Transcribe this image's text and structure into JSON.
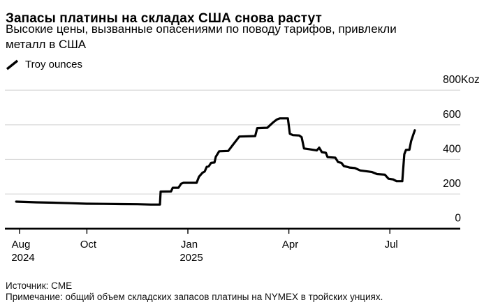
{
  "header": {
    "title": "Запасы платины на складах США снова растут",
    "subtitle_lines": [
      "Высокие цены, вызванные опасениями по поводу тарифов, привлекли",
      "металл в США"
    ]
  },
  "legend": {
    "label": "Troy ounces",
    "marker": "diagonal-line"
  },
  "footer": {
    "source": "Источник: CME",
    "note": "Примечание: общий объем складских запасов платины на NYMEX в тройских унциях."
  },
  "colors": {
    "line": "#000000",
    "grid": "#d8d8d8",
    "axis": "#000000",
    "text": "#000000",
    "background": "#ffffff"
  },
  "chart_data": {
    "type": "line",
    "title": "Запасы платины на складах США снова растут",
    "ylabel": "Troy ounces",
    "unit": "Koz (thousand troy ounces)",
    "ylim": [
      0,
      800
    ],
    "grid": "horizontal",
    "legend_position": "top-left",
    "y_ticks": [
      {
        "value": 800,
        "label": "800",
        "suffix": "Koz"
      },
      {
        "value": 600,
        "label": "600",
        "suffix": ""
      },
      {
        "value": 400,
        "label": "400",
        "suffix": ""
      },
      {
        "value": 200,
        "label": "200",
        "suffix": ""
      },
      {
        "value": 0,
        "label": "0",
        "suffix": ""
      }
    ],
    "x_unit": "months since Aug 2024",
    "x_ticks": [
      {
        "m": 0,
        "label": "Aug",
        "sublabel": "2024"
      },
      {
        "m": 2,
        "label": "Oct",
        "sublabel": ""
      },
      {
        "m": 5,
        "label": "Jan",
        "sublabel": "2025"
      },
      {
        "m": 8,
        "label": "Apr",
        "sublabel": ""
      },
      {
        "m": 11,
        "label": "Jul",
        "sublabel": ""
      }
    ],
    "series": [
      {
        "name": "Troy ounces",
        "points": [
          [
            -0.1,
            156
          ],
          [
            0.5,
            152
          ],
          [
            1,
            150
          ],
          [
            1.5,
            147
          ],
          [
            2,
            144
          ],
          [
            2.5,
            143
          ],
          [
            3,
            142
          ],
          [
            3.5,
            141
          ],
          [
            3.9,
            139
          ],
          [
            4.17,
            139
          ],
          [
            4.19,
            214
          ],
          [
            4.5,
            215
          ],
          [
            4.55,
            236
          ],
          [
            4.72,
            236
          ],
          [
            4.8,
            260
          ],
          [
            4.87,
            265
          ],
          [
            5.26,
            265
          ],
          [
            5.33,
            300
          ],
          [
            5.43,
            322
          ],
          [
            5.5,
            330
          ],
          [
            5.56,
            357
          ],
          [
            5.62,
            360
          ],
          [
            5.69,
            380
          ],
          [
            5.79,
            382
          ],
          [
            5.83,
            415
          ],
          [
            5.93,
            447
          ],
          [
            6.2,
            449
          ],
          [
            6.36,
            490
          ],
          [
            6.53,
            532
          ],
          [
            7,
            535
          ],
          [
            7.06,
            581
          ],
          [
            7.36,
            583
          ],
          [
            7.52,
            612
          ],
          [
            7.64,
            630
          ],
          [
            7.73,
            637
          ],
          [
            7.97,
            637
          ],
          [
            8.03,
            548
          ],
          [
            8.12,
            540
          ],
          [
            8.31,
            538
          ],
          [
            8.38,
            528
          ],
          [
            8.45,
            463
          ],
          [
            8.6,
            459
          ],
          [
            8.73,
            455
          ],
          [
            8.83,
            452
          ],
          [
            8.9,
            468
          ],
          [
            8.98,
            442
          ],
          [
            9.1,
            438
          ],
          [
            9.15,
            413
          ],
          [
            9.38,
            410
          ],
          [
            9.46,
            385
          ],
          [
            9.56,
            380
          ],
          [
            9.63,
            362
          ],
          [
            9.8,
            353
          ],
          [
            9.96,
            350
          ],
          [
            10.12,
            336
          ],
          [
            10.36,
            330
          ],
          [
            10.47,
            327
          ],
          [
            10.62,
            315
          ],
          [
            10.85,
            312
          ],
          [
            10.96,
            288
          ],
          [
            11.1,
            284
          ],
          [
            11.2,
            274
          ],
          [
            11.37,
            274
          ],
          [
            11.43,
            430
          ],
          [
            11.48,
            455
          ],
          [
            11.58,
            456
          ],
          [
            11.63,
            505
          ],
          [
            11.69,
            540
          ],
          [
            11.74,
            568
          ]
        ]
      }
    ]
  }
}
